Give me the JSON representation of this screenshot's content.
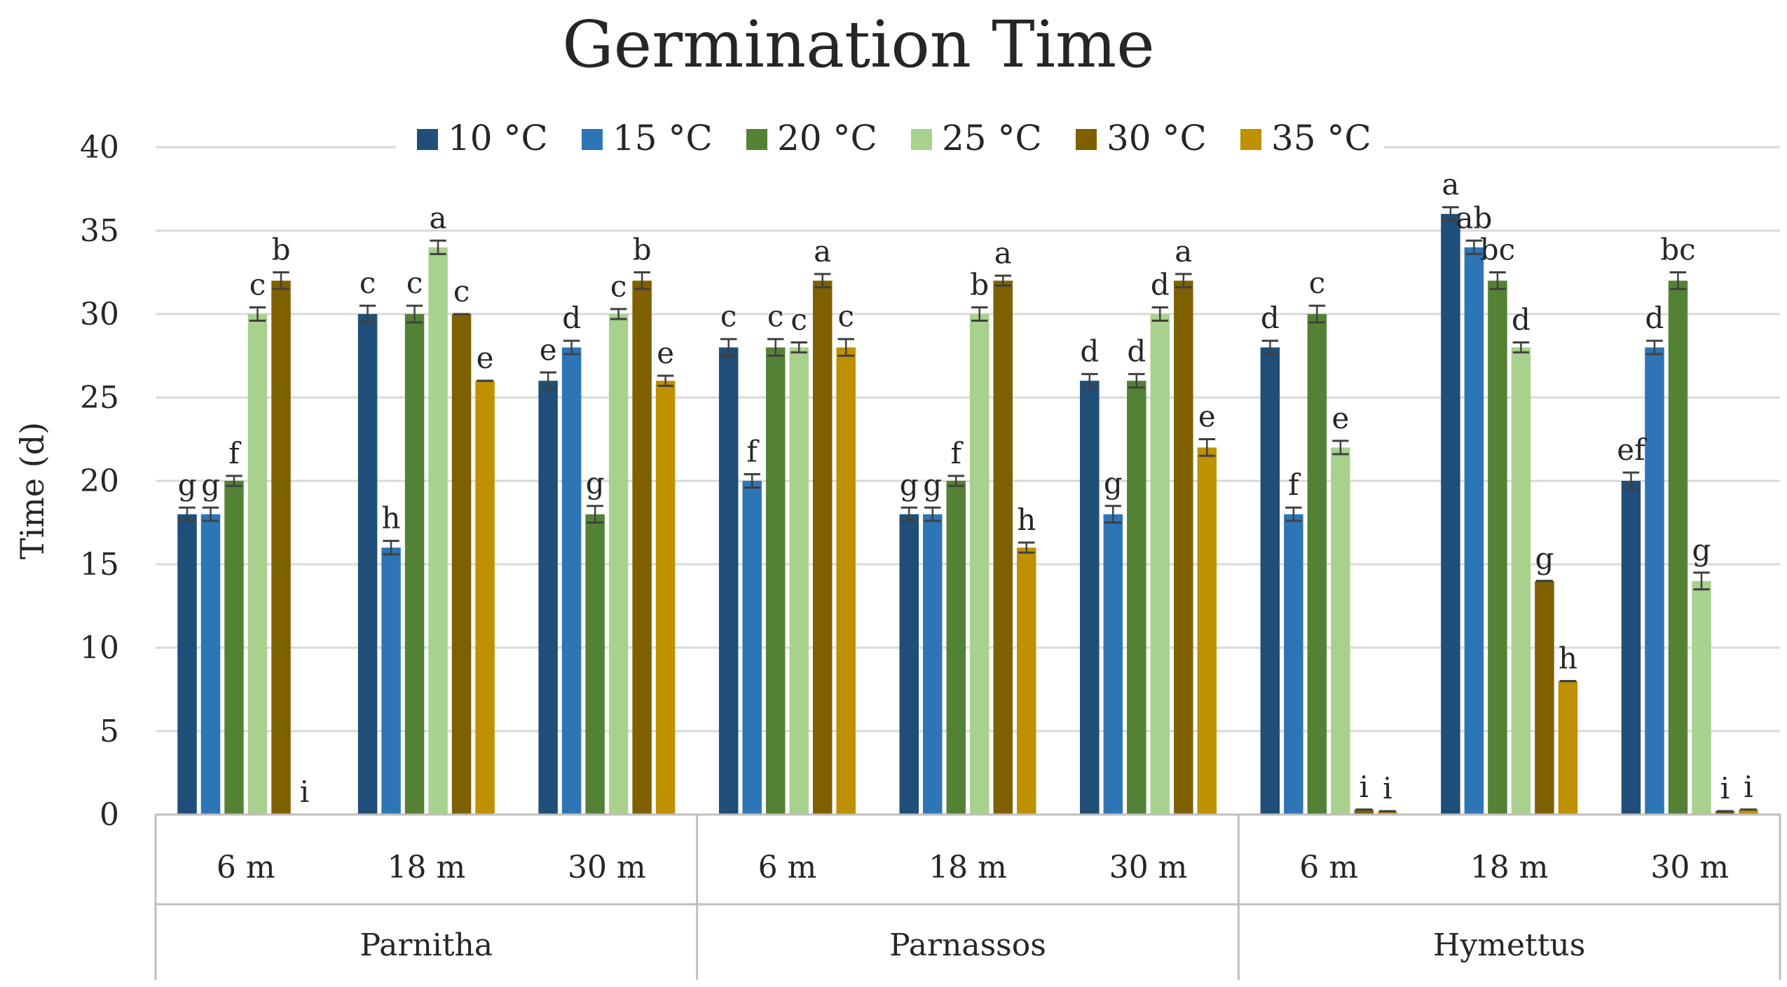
{
  "chart_data": {
    "type": "bar",
    "title": "Germination Time",
    "ylabel": "Time (d)",
    "xlabel": "",
    "ylim": [
      0,
      40
    ],
    "yticks": [
      "0",
      "5",
      "10",
      "15",
      "20",
      "25",
      "30",
      "35",
      "40"
    ],
    "legend_position": "top",
    "grid": true,
    "groups": [
      {
        "name": "Parnitha",
        "categories": [
          "6 m",
          "18 m",
          "30 m"
        ]
      },
      {
        "name": "Parnassos",
        "categories": [
          "6 m",
          "18 m",
          "30 m"
        ]
      },
      {
        "name": "Hymettus",
        "categories": [
          "6 m",
          "18 m",
          "30 m"
        ]
      }
    ],
    "series": [
      {
        "name": "10 °C",
        "color": "#1f4e79",
        "values": [
          18,
          30,
          26,
          28,
          18,
          26,
          28,
          36,
          20
        ],
        "errors": [
          0.4,
          0.5,
          0.5,
          0.5,
          0.4,
          0.4,
          0.4,
          0.4,
          0.5
        ],
        "letters": [
          "g",
          "c",
          "e",
          "c",
          "g",
          "d",
          "d",
          "a",
          "ef"
        ]
      },
      {
        "name": "15 °C",
        "color": "#2e75b6",
        "values": [
          18,
          16,
          28,
          20,
          18,
          18,
          18,
          34,
          28
        ],
        "errors": [
          0.4,
          0.4,
          0.4,
          0.4,
          0.4,
          0.5,
          0.4,
          0.4,
          0.4
        ],
        "letters": [
          "g",
          "h",
          "d",
          "f",
          "g",
          "g",
          "f",
          "ab",
          "d"
        ]
      },
      {
        "name": "20 °C",
        "color": "#548235",
        "values": [
          20,
          30,
          18,
          28,
          20,
          26,
          30,
          32,
          32
        ],
        "errors": [
          0.3,
          0.5,
          0.5,
          0.5,
          0.3,
          0.4,
          0.5,
          0.5,
          0.5
        ],
        "letters": [
          "f",
          "c",
          "g",
          "c",
          "f",
          "d",
          "c",
          "bc",
          "bc"
        ]
      },
      {
        "name": "25 °C",
        "color": "#a9d18e",
        "values": [
          30,
          34,
          30,
          28,
          30,
          30,
          22,
          28,
          14
        ],
        "errors": [
          0.4,
          0.4,
          0.3,
          0.3,
          0.4,
          0.4,
          0.4,
          0.3,
          0.5
        ],
        "letters": [
          "c",
          "a",
          "c",
          "c",
          "b",
          "d",
          "e",
          "d",
          "g"
        ]
      },
      {
        "name": "30 °C",
        "color": "#7f6000",
        "values": [
          32,
          30,
          32,
          32,
          32,
          32,
          0.3,
          14,
          0.2
        ],
        "errors": [
          0.5,
          0,
          0.5,
          0.4,
          0.3,
          0.4,
          0,
          0,
          0
        ],
        "letters": [
          "b",
          "c",
          "b",
          "a",
          "a",
          "a",
          "i",
          "g",
          "i"
        ]
      },
      {
        "name": "35 °C",
        "color": "#bf9000",
        "values": [
          0,
          26,
          26,
          28,
          16,
          22,
          0.2,
          8,
          0.3
        ],
        "errors": [
          0,
          0,
          0.3,
          0.5,
          0.3,
          0.5,
          0,
          0,
          0
        ],
        "letters": [
          "i",
          "e",
          "e",
          "c",
          "h",
          "e",
          "i",
          "h",
          "i"
        ]
      }
    ]
  }
}
